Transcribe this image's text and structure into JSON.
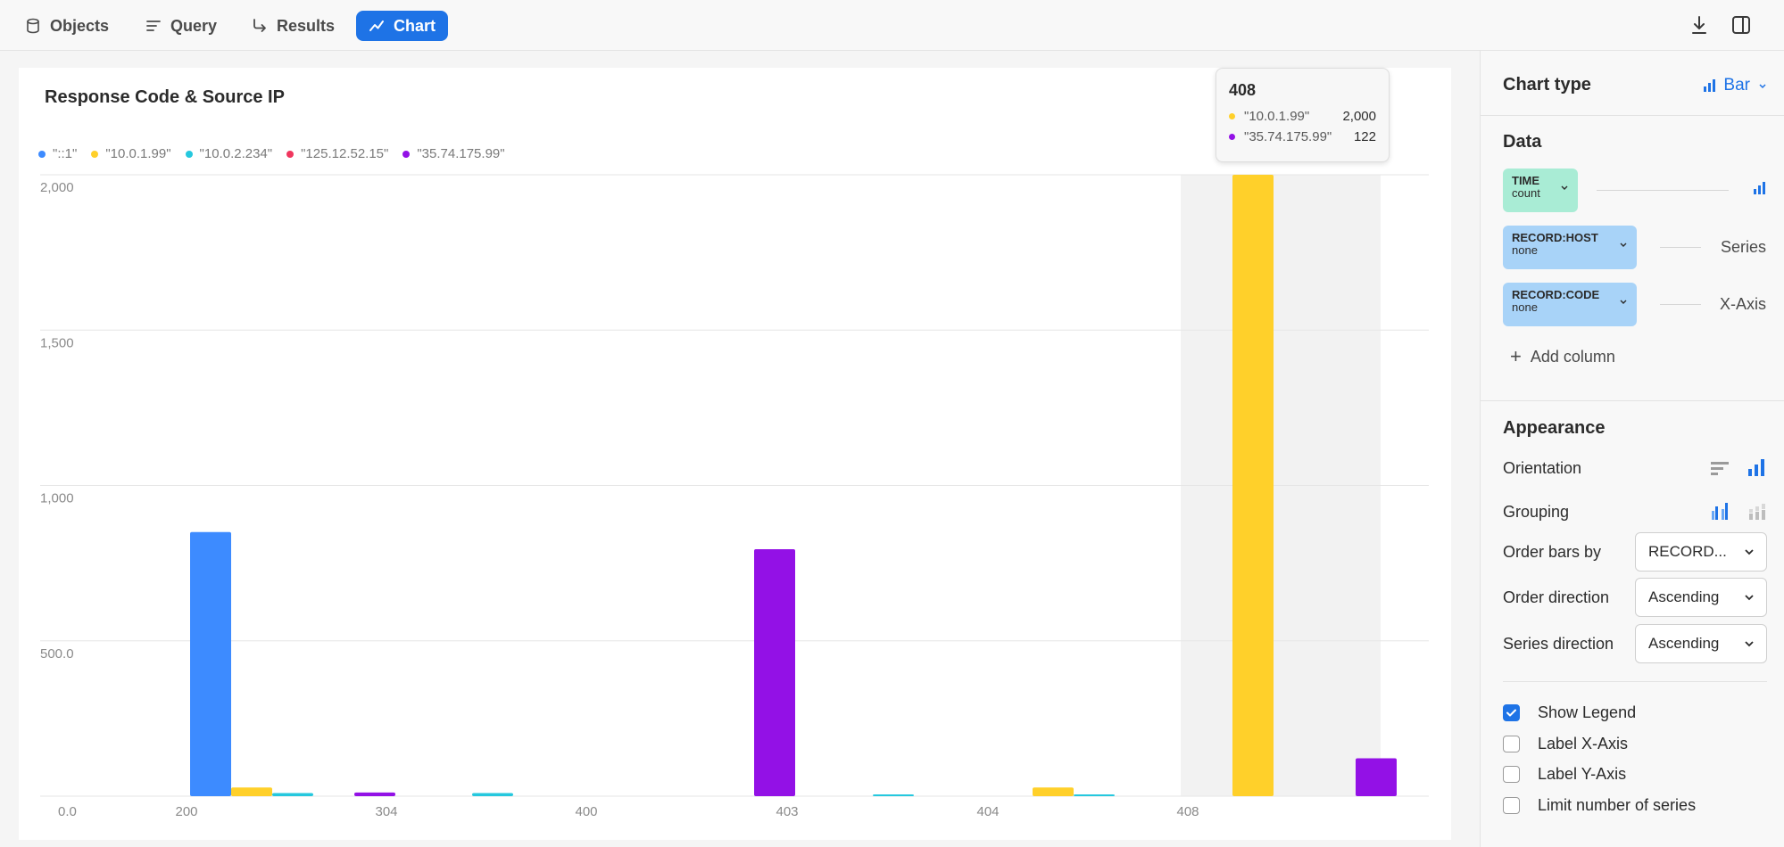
{
  "toolbar": {
    "tabs": [
      {
        "label": "Objects",
        "icon": "database-icon"
      },
      {
        "label": "Query",
        "icon": "query-lines-icon"
      },
      {
        "label": "Results",
        "icon": "arrow-return-icon"
      },
      {
        "label": "Chart",
        "icon": "line-chart-icon",
        "active": true
      }
    ],
    "right_icons": [
      "download-icon",
      "split-panel-icon"
    ],
    "accent": "#1e73e6"
  },
  "tooltip": {
    "title": "408",
    "rows": [
      {
        "label": "\"10.0.1.99\"",
        "value": "2,000",
        "color": "#ffd02a"
      },
      {
        "label": "\"35.74.175.99\"",
        "value": "122",
        "color": "#9311e6"
      }
    ]
  },
  "chart_data": {
    "type": "bar",
    "title": "Response Code & Source IP",
    "categories": [
      "200",
      "304",
      "400",
      "403",
      "404",
      "408"
    ],
    "series": [
      {
        "name": "\"::1\"",
        "color": "#3d8bff",
        "values": [
          850,
          0,
          0,
          0,
          0,
          0
        ]
      },
      {
        "name": "\"10.0.1.99\"",
        "color": "#ffd02a",
        "values": [
          28,
          0,
          0,
          0,
          28,
          2000
        ]
      },
      {
        "name": "\"10.0.2.234\"",
        "color": "#25c8de",
        "values": [
          10,
          10,
          0,
          3,
          3,
          0
        ]
      },
      {
        "name": "\"125.12.52.15\"",
        "color": "#f0365e",
        "values": [
          0,
          0,
          0,
          0,
          0,
          0
        ]
      },
      {
        "name": "\"35.74.175.99\"",
        "color": "#9311e6",
        "values": [
          12,
          0,
          795,
          0,
          0,
          122
        ]
      }
    ],
    "y_ticks": [
      "0.0",
      "500.0",
      "1,000",
      "1,500",
      "2,000"
    ],
    "ylim": [
      0,
      2000
    ],
    "grid": true,
    "legend": "top-left",
    "highlighted_category": "408"
  },
  "panel": {
    "chart_type": {
      "heading": "Chart type",
      "value": "Bar"
    },
    "data": {
      "heading": "Data",
      "columns": [
        {
          "name": "TIME",
          "sub": "count",
          "role": "",
          "role_icon": "bar-chart-icon"
        },
        {
          "name": "RECORD:HOST",
          "sub": "none",
          "role": "Series"
        },
        {
          "name": "RECORD:CODE",
          "sub": "none",
          "role": "X-Axis"
        }
      ],
      "add_label": "Add column"
    },
    "appearance": {
      "heading": "Appearance",
      "orientation_label": "Orientation",
      "grouping_label": "Grouping",
      "order_by_label": "Order bars by",
      "order_by_value": "RECORD...",
      "order_direction_label": "Order direction",
      "order_direction_value": "Ascending",
      "series_direction_label": "Series direction",
      "series_direction_value": "Ascending"
    },
    "options": [
      {
        "label": "Show Legend",
        "checked": true
      },
      {
        "label": "Label X-Axis",
        "checked": false
      },
      {
        "label": "Label Y-Axis",
        "checked": false
      },
      {
        "label": "Limit number of series",
        "checked": false
      }
    ]
  }
}
